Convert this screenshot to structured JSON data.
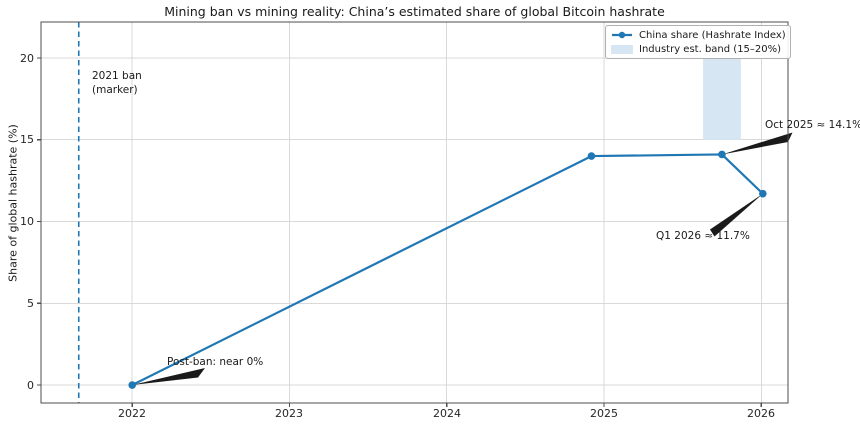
{
  "figure": {
    "title": "Mining ban vs mining reality: China’s estimated share of global Bitcoin hashrate"
  },
  "chart_data": {
    "type": "line",
    "title": "Mining ban vs mining reality: China’s estimated share of global Bitcoin hashrate",
    "xlabel": "",
    "ylabel": "Share of global hashrate (%)",
    "xlim": [
      2021.42,
      2026.17
    ],
    "ylim": [
      -1.1,
      22.2
    ],
    "x_ticks": [
      2022,
      2023,
      2024,
      2025,
      2026
    ],
    "x_tick_labels": [
      "2022",
      "2023",
      "2024",
      "2025",
      "2026"
    ],
    "y_ticks": [
      0,
      5,
      10,
      15,
      20
    ],
    "y_tick_labels": [
      "0",
      "5",
      "10",
      "15",
      "20"
    ],
    "grid": true,
    "legend_position": "upper right",
    "series": [
      {
        "name": "China share (Hashrate Index)",
        "color": "#1f77b4",
        "marker": "circle",
        "points": [
          {
            "label": "Jan 2022",
            "x": 2022.0,
            "y": 0.0
          },
          {
            "label": "Dec 2024",
            "x": 2024.92,
            "y": 14.0
          },
          {
            "label": "Oct 2025",
            "x": 2025.75,
            "y": 14.1
          },
          {
            "label": "Q1 2026",
            "x": 2026.01,
            "y": 11.7
          }
        ]
      }
    ],
    "band": {
      "name": "Industry est. band (15–20%)",
      "x_from": 2025.63,
      "x_to": 2025.87,
      "y_from": 15,
      "y_to": 20,
      "color": "#d7e6f3"
    },
    "ban_marker": {
      "x": 2021.66,
      "style": "dashed",
      "color": "#1f77b4",
      "label_line1": "2021 ban",
      "label_line2": "(marker)"
    },
    "annotations": [
      {
        "text": "Post-ban: near 0%",
        "target_x": 2022.0,
        "target_y": 0.0
      },
      {
        "text": "Oct 2025 ≈ 14.1%",
        "target_x": 2025.75,
        "target_y": 14.1
      },
      {
        "text": "Q1 2026 ≈ 11.7%",
        "target_x": 2026.01,
        "target_y": 11.7
      }
    ],
    "colors": {
      "line": "#1f77b4",
      "band": "#d7e6f3",
      "grid": "#d9d9d9",
      "spine": "#4d4d4d",
      "text": "#1a1a1a",
      "annotation_arrow": "#1a1a1a"
    }
  },
  "legend": {
    "entries": [
      {
        "label": "China share (Hashrate Index)",
        "swatch": "line-marker"
      },
      {
        "label": "Industry est. band (15–20%)",
        "swatch": "patch"
      }
    ]
  }
}
